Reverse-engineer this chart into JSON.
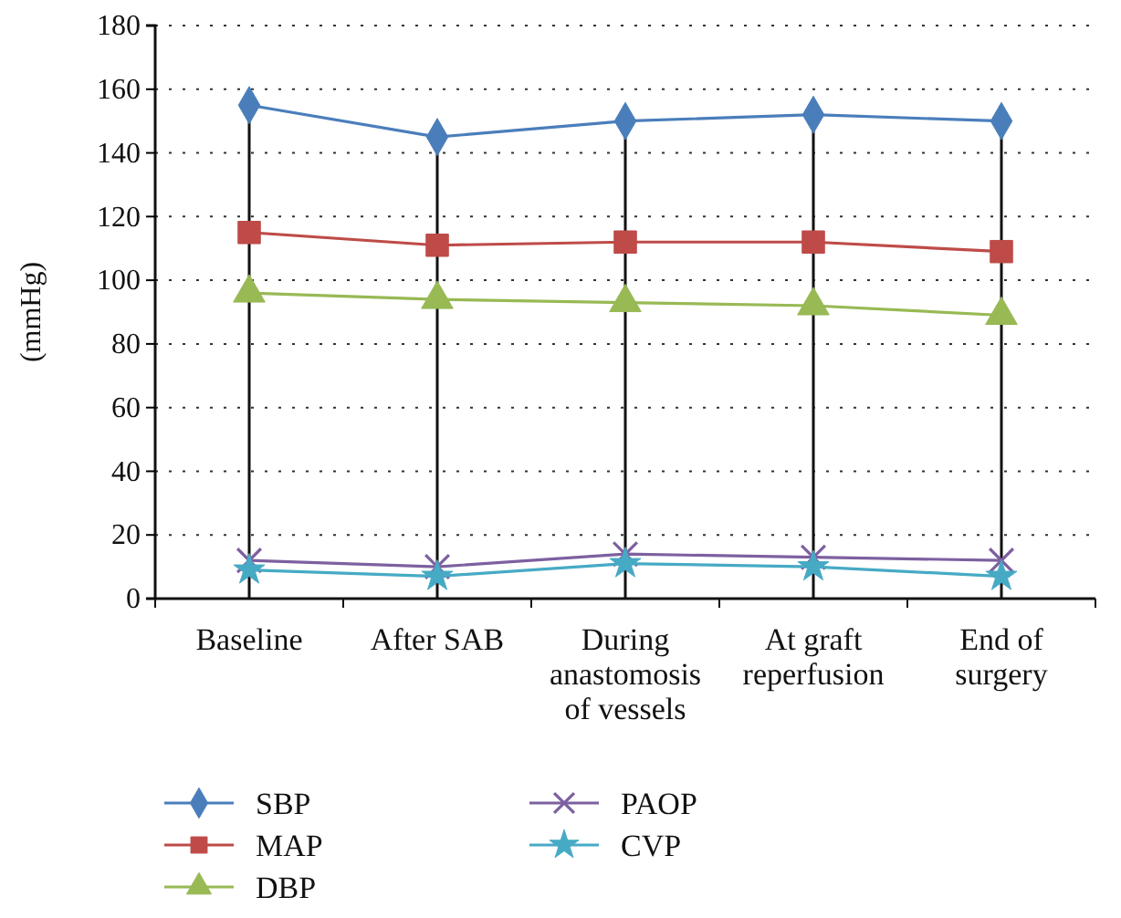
{
  "chart_data": {
    "type": "line",
    "ylabel": "(mmHg)",
    "categories": [
      "Baseline",
      "After SAB",
      "During anastomosis of vessels",
      "At graft reperfusion",
      "End of surgery"
    ],
    "series": [
      {
        "name": "SBP",
        "color": "#4a7ebb",
        "marker": "diamond",
        "values": [
          155,
          145,
          150,
          152,
          150
        ]
      },
      {
        "name": "MAP",
        "color": "#be4b48",
        "marker": "square",
        "values": [
          115,
          111,
          112,
          112,
          109
        ]
      },
      {
        "name": "DBP",
        "color": "#98b954",
        "marker": "triangle",
        "values": [
          96,
          94,
          93,
          92,
          89
        ]
      },
      {
        "name": "PAOP",
        "color": "#7d60a0",
        "marker": "cross",
        "values": [
          12,
          10,
          14,
          13,
          12
        ]
      },
      {
        "name": "CVP",
        "color": "#46aac5",
        "marker": "star",
        "values": [
          9,
          7,
          11,
          10,
          7
        ]
      }
    ],
    "ylim": [
      0,
      180
    ],
    "yticks": [
      0,
      20,
      40,
      60,
      80,
      100,
      120,
      140,
      160,
      180
    ],
    "grid": true,
    "legend": "bottom"
  }
}
